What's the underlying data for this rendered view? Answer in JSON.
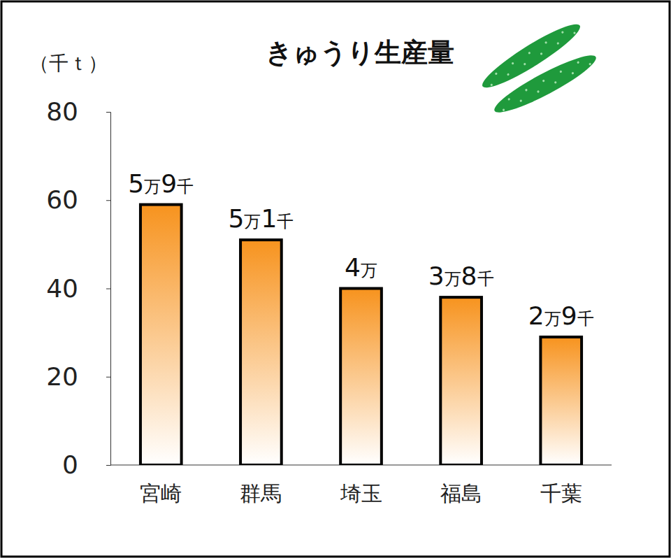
{
  "chart_data": {
    "type": "bar",
    "title": "きゅうり生産量",
    "y_label": "（千ｔ）",
    "categories": [
      "宮崎",
      "群馬",
      "埼玉",
      "福島",
      "千葉"
    ],
    "values": [
      59,
      51,
      40,
      38,
      29
    ],
    "value_labels": [
      "5万9千",
      "5万1千",
      "4万",
      "3万8千",
      "2万9千"
    ],
    "color": "#f7931e",
    "ylim": [
      0,
      80
    ],
    "yticks": [
      0,
      20,
      40,
      60,
      80
    ],
    "grid": false,
    "data_labels": true
  }
}
